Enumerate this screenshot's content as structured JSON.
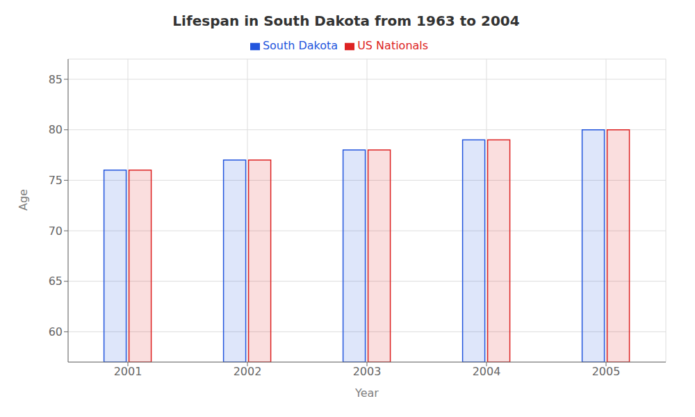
{
  "chart_data": {
    "type": "bar",
    "title": "Lifespan in South Dakota from 1963 to 2004",
    "xlabel": "Year",
    "ylabel": "Age",
    "categories": [
      "2001",
      "2002",
      "2003",
      "2004",
      "2005"
    ],
    "series": [
      {
        "name": "South Dakota",
        "color": "#2255dd",
        "values": [
          76,
          77,
          78,
          79,
          80
        ]
      },
      {
        "name": "US Nationals",
        "color": "#dd2222",
        "values": [
          76,
          77,
          78,
          79,
          80
        ]
      }
    ],
    "ylim": [
      57,
      87
    ],
    "yticks": [
      60,
      65,
      70,
      75,
      80,
      85
    ],
    "grid": true,
    "legend": "top"
  }
}
